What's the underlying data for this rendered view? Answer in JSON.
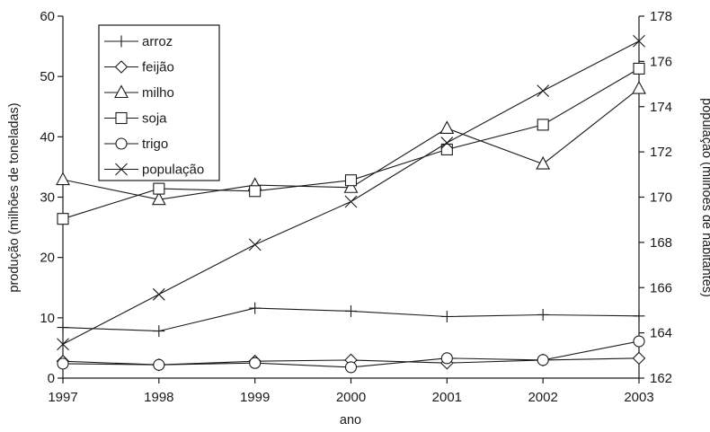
{
  "chart_data": {
    "type": "line",
    "x": [
      1997,
      1998,
      1999,
      2000,
      2001,
      2002,
      2003
    ],
    "xlabel": "ano",
    "ylabel": "produção (milhões de toneladas)",
    "y2label": "população (milhões de habitantes)",
    "ylim": [
      0,
      60
    ],
    "y2lim": [
      162,
      178
    ],
    "yticks": [
      "0",
      "10",
      "20",
      "30",
      "40",
      "50",
      "60"
    ],
    "y2ticks": [
      "162",
      "164",
      "166",
      "168",
      "170",
      "172",
      "174",
      "176",
      "178"
    ],
    "xticks": [
      "1997",
      "1998",
      "1999",
      "2000",
      "2001",
      "2002",
      "2003"
    ],
    "legend_position": "top-left",
    "grid": false,
    "series": [
      {
        "name": "arroz",
        "marker": "plus",
        "axis": "left",
        "values": [
          8.4,
          7.8,
          11.6,
          11.1,
          10.2,
          10.5,
          10.3
        ]
      },
      {
        "name": "feijão",
        "marker": "diamond",
        "axis": "left",
        "values": [
          2.8,
          2.2,
          2.8,
          3.0,
          2.5,
          3.0,
          3.3
        ]
      },
      {
        "name": "milho",
        "marker": "triangle",
        "axis": "left",
        "values": [
          32.9,
          29.6,
          32.0,
          31.6,
          41.4,
          35.5,
          48.0
        ]
      },
      {
        "name": "soja",
        "marker": "square",
        "axis": "left",
        "values": [
          26.4,
          31.4,
          31.0,
          32.8,
          37.9,
          42.0,
          51.3
        ]
      },
      {
        "name": "trigo",
        "marker": "circle",
        "axis": "left",
        "values": [
          2.4,
          2.2,
          2.5,
          1.8,
          3.3,
          3.0,
          6.1
        ]
      },
      {
        "name": "população",
        "marker": "x",
        "axis": "right",
        "values": [
          163.5,
          165.7,
          167.9,
          169.8,
          172.4,
          174.7,
          176.9
        ]
      }
    ]
  }
}
